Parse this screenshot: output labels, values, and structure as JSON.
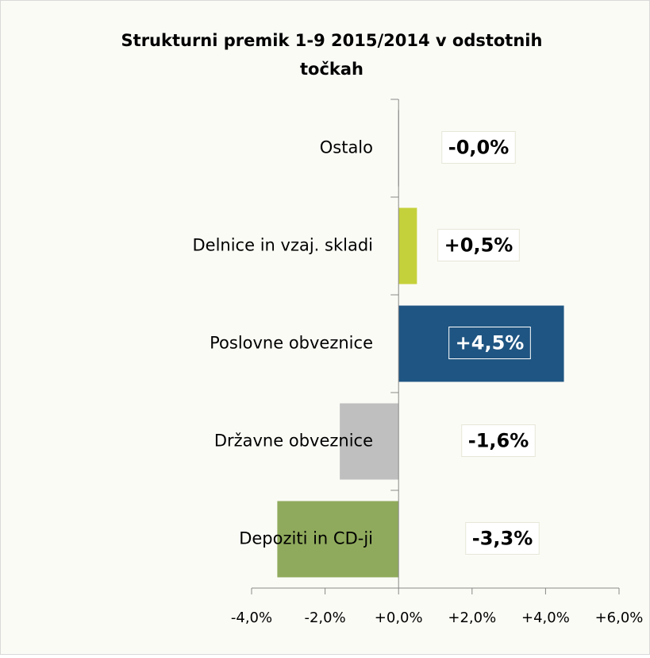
{
  "chart_data": {
    "type": "hbar",
    "title": "Strukturni premik 1-9 2015/2014 v odstotnih točkah",
    "categories": [
      "Ostalo",
      "Delnice in vzaj. skladi",
      "Poslovne obveznice",
      "Državne obveznice",
      "Depoziti in CD-ji"
    ],
    "values": [
      -0.01,
      0.5,
      4.5,
      -1.6,
      -3.3
    ],
    "value_labels": [
      "-0,0%",
      "+0,5%",
      "+4,5%",
      "-1,6%",
      "-3,3%"
    ],
    "colors": [
      "#7f7f7f",
      "#c5d13a",
      "#1f5582",
      "#bfbfbf",
      "#8faa5c"
    ],
    "xlim": [
      -4,
      6
    ],
    "xticks": [
      {
        "value": -4,
        "label": "-4,0%"
      },
      {
        "value": -2,
        "label": "-2,0%"
      },
      {
        "value": 0,
        "label": "+0,0%"
      },
      {
        "value": 2,
        "label": "+2,0%"
      },
      {
        "value": 4,
        "label": "+4,0%"
      },
      {
        "value": 6,
        "label": "+6,0%"
      }
    ]
  }
}
